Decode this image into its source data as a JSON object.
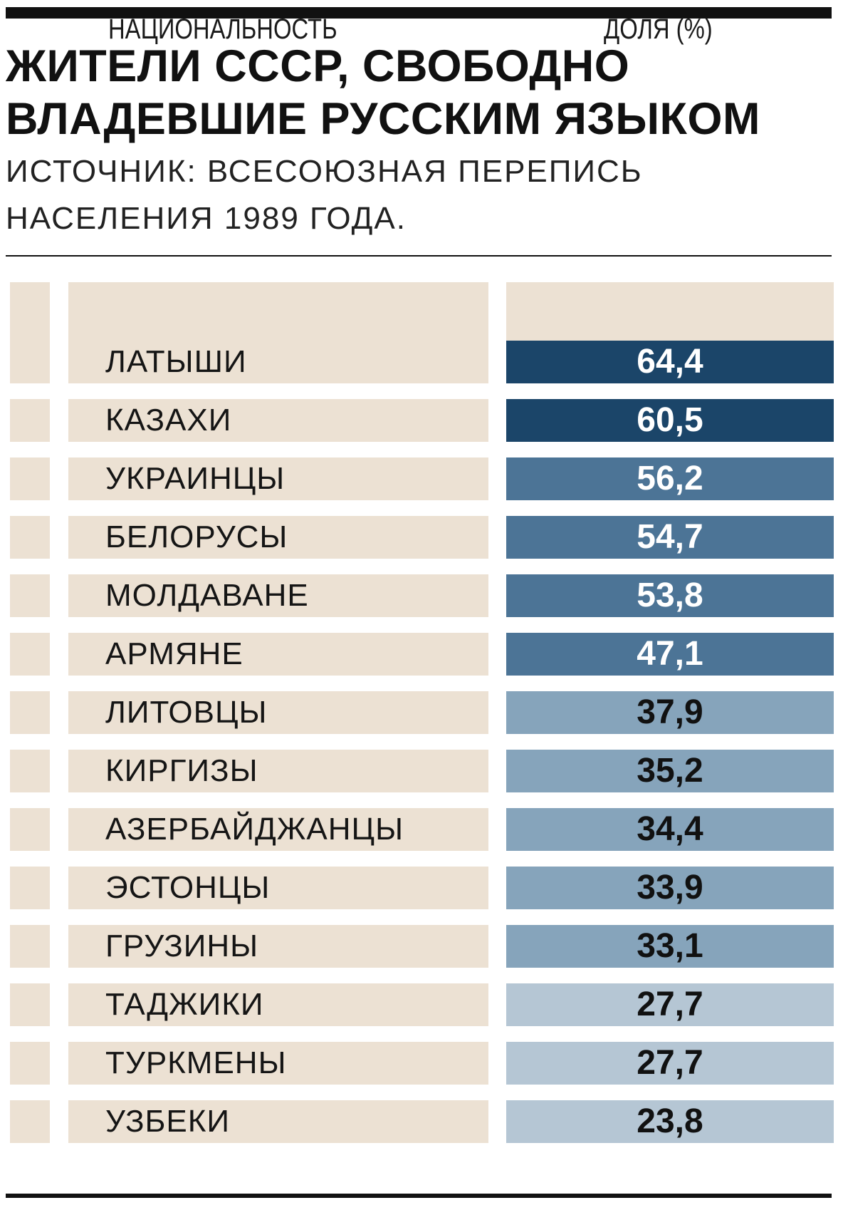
{
  "title_line1": "ЖИТЕЛИ СССР, СВОБОДНО",
  "title_line2": "ВЛАДЕВШИЕ РУССКИМ ЯЗЫКОМ",
  "subtitle_line1": "ИСТОЧНИК: ВСЕСОЮЗНАЯ ПЕРЕПИСЬ",
  "subtitle_line2": "НАСЕЛЕНИЯ 1989 ГОДА.",
  "colors": {
    "cell_bg": "#ece1d3",
    "tier_dark": "#1b4569",
    "tier_mid": "#4c7496",
    "tier_light": "#86a4bb",
    "tier_pale": "#b5c6d4",
    "text_light": "#ffffff",
    "text_dark": "#111111"
  },
  "chart_data": {
    "type": "table",
    "columns": [
      "НАЦИОНАЛЬНОСТЬ",
      "ДОЛЯ (%)"
    ],
    "rows": [
      {
        "name": "ЛАТЫШИ",
        "value": "64,4",
        "tier": "dark"
      },
      {
        "name": "КАЗАХИ",
        "value": "60,5",
        "tier": "dark"
      },
      {
        "name": "УКРАИНЦЫ",
        "value": "56,2",
        "tier": "mid"
      },
      {
        "name": "БЕЛОРУСЫ",
        "value": "54,7",
        "tier": "mid"
      },
      {
        "name": "МОЛДАВАНЕ",
        "value": "53,8",
        "tier": "mid"
      },
      {
        "name": "АРМЯНЕ",
        "value": "47,1",
        "tier": "mid"
      },
      {
        "name": "ЛИТОВЦЫ",
        "value": "37,9",
        "tier": "light"
      },
      {
        "name": "КИРГИЗЫ",
        "value": "35,2",
        "tier": "light"
      },
      {
        "name": "АЗЕРБАЙДЖАНЦЫ",
        "value": "34,4",
        "tier": "light"
      },
      {
        "name": "ЭСТОНЦЫ",
        "value": "33,9",
        "tier": "light"
      },
      {
        "name": "ГРУЗИНЫ",
        "value": "33,1",
        "tier": "light"
      },
      {
        "name": "ТАДЖИКИ",
        "value": "27,7",
        "tier": "pale"
      },
      {
        "name": "ТУРКМЕНЫ",
        "value": "27,7",
        "tier": "pale"
      },
      {
        "name": "УЗБЕКИ",
        "value": "23,8",
        "tier": "pale"
      }
    ]
  }
}
